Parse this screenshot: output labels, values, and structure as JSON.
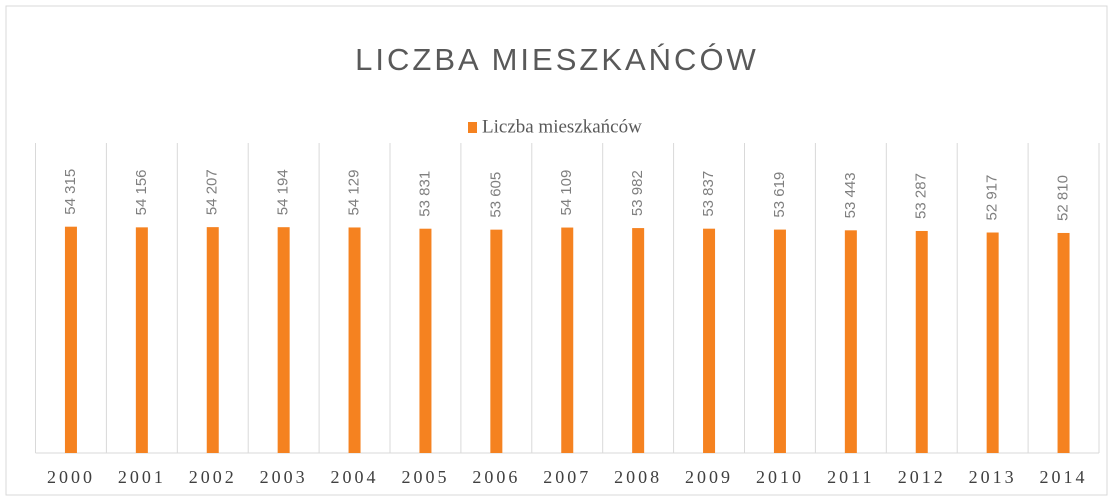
{
  "chart_data": {
    "type": "bar",
    "title": "LICZBA MIESZKAŃCÓW",
    "categories": [
      "2000",
      "2001",
      "2002",
      "2003",
      "2004",
      "2005",
      "2006",
      "2007",
      "2008",
      "2009",
      "2010",
      "2011",
      "2012",
      "2013",
      "2014"
    ],
    "series": [
      {
        "name": "Liczba mieszkańców",
        "color": "#f58220",
        "values": [
          54315,
          54156,
          54207,
          54194,
          54129,
          53831,
          53605,
          54109,
          53982,
          53837,
          53619,
          53443,
          53287,
          52917,
          52810
        ],
        "value_labels": [
          "54 315",
          "54 156",
          "54 207",
          "54 194",
          "54 129",
          "53 831",
          "53 605",
          "54 109",
          "53 982",
          "53 837",
          "53 619",
          "53 443",
          "53 287",
          "52 917",
          "52 810"
        ]
      }
    ],
    "ylim": [
      0,
      60000
    ],
    "legend": "top"
  }
}
